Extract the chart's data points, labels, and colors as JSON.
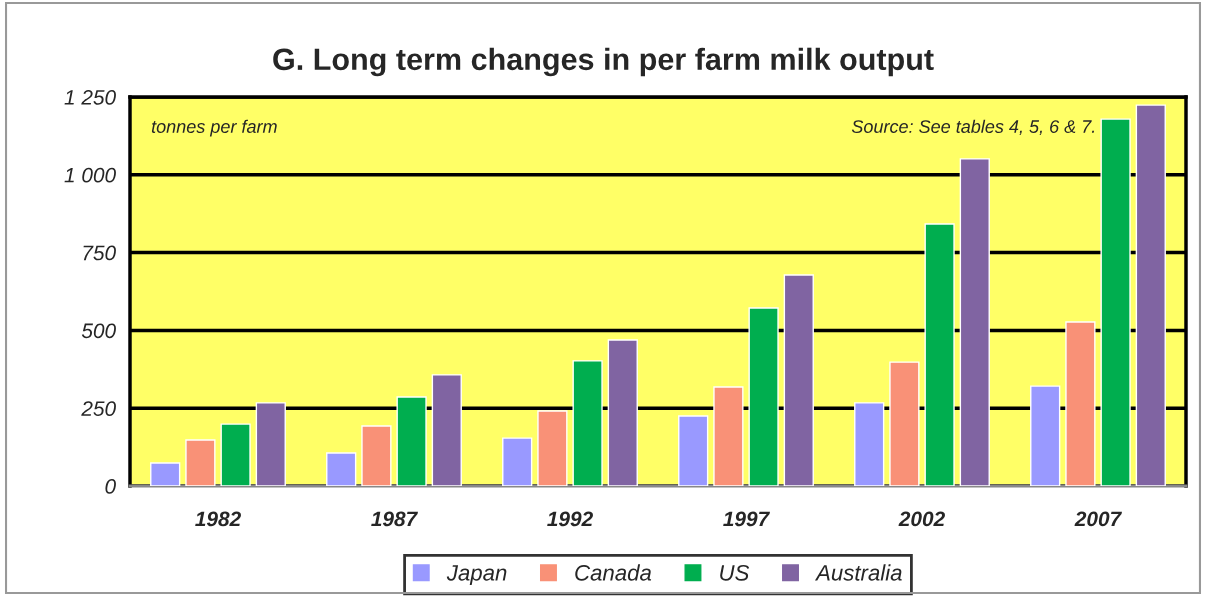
{
  "chart_data": {
    "type": "bar",
    "title": "G. Long term changes in per farm milk output",
    "categories": [
      "1982",
      "1987",
      "1992",
      "1997",
      "2002",
      "2007"
    ],
    "series": [
      {
        "name": "Japan",
        "color": "#9999ff",
        "values": [
          74,
          106,
          154,
          225,
          267,
          321
        ]
      },
      {
        "name": "Canada",
        "color": "#f99177",
        "values": [
          148,
          193,
          241,
          318,
          398,
          527
        ]
      },
      {
        "name": "US",
        "color": "#00ae4f",
        "values": [
          199,
          286,
          402,
          572,
          842,
          1179
        ]
      },
      {
        "name": "Australia",
        "color": "#8064a2",
        "values": [
          267,
          357,
          469,
          678,
          1051,
          1224
        ]
      }
    ],
    "ylim": [
      0,
      1250
    ],
    "yticks": [
      0,
      250,
      500,
      750,
      {
        "value": 1000,
        "label": "1 000"
      },
      {
        "value": 1250,
        "label": "1 250"
      }
    ],
    "grid": "y",
    "legend": "bottom",
    "annotations": [
      "tonnes per farm",
      "Source: See tables 4, 5, 6 & 7."
    ]
  }
}
